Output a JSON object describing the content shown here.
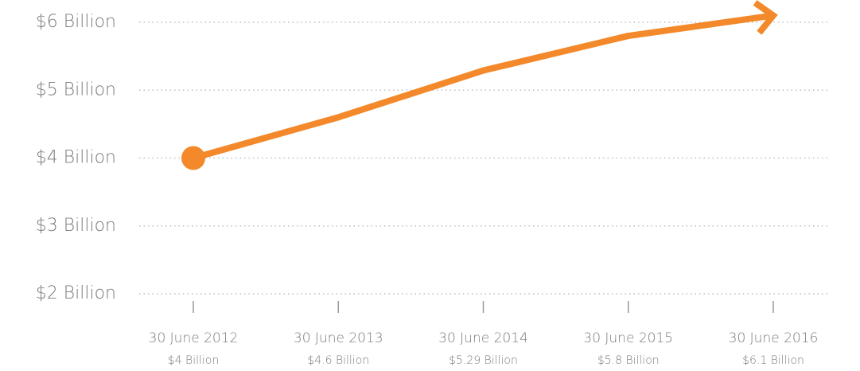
{
  "chart_data": {
    "type": "line",
    "categories": [
      "30 June 2012",
      "30 June 2013",
      "30 June 2014",
      "30 June 2015",
      "30 June 2016"
    ],
    "values": [
      4,
      4.6,
      5.29,
      5.8,
      6.1
    ],
    "value_labels": [
      "$4 Billion",
      "$4.6 Billion",
      "$5.29 Billion",
      "$5.8 Billion",
      "$6.1 Billion"
    ],
    "color": "#f3892a",
    "ylim": [
      2,
      6
    ],
    "yticks": [
      {
        "value": 2,
        "label": "$2 Billion"
      },
      {
        "value": 3,
        "label": "$3 Billion"
      },
      {
        "value": 4,
        "label": "$4 Billion"
      },
      {
        "value": 5,
        "label": "$5 Billion"
      },
      {
        "value": 6,
        "label": "$6 Billion"
      }
    ],
    "grid": true
  }
}
